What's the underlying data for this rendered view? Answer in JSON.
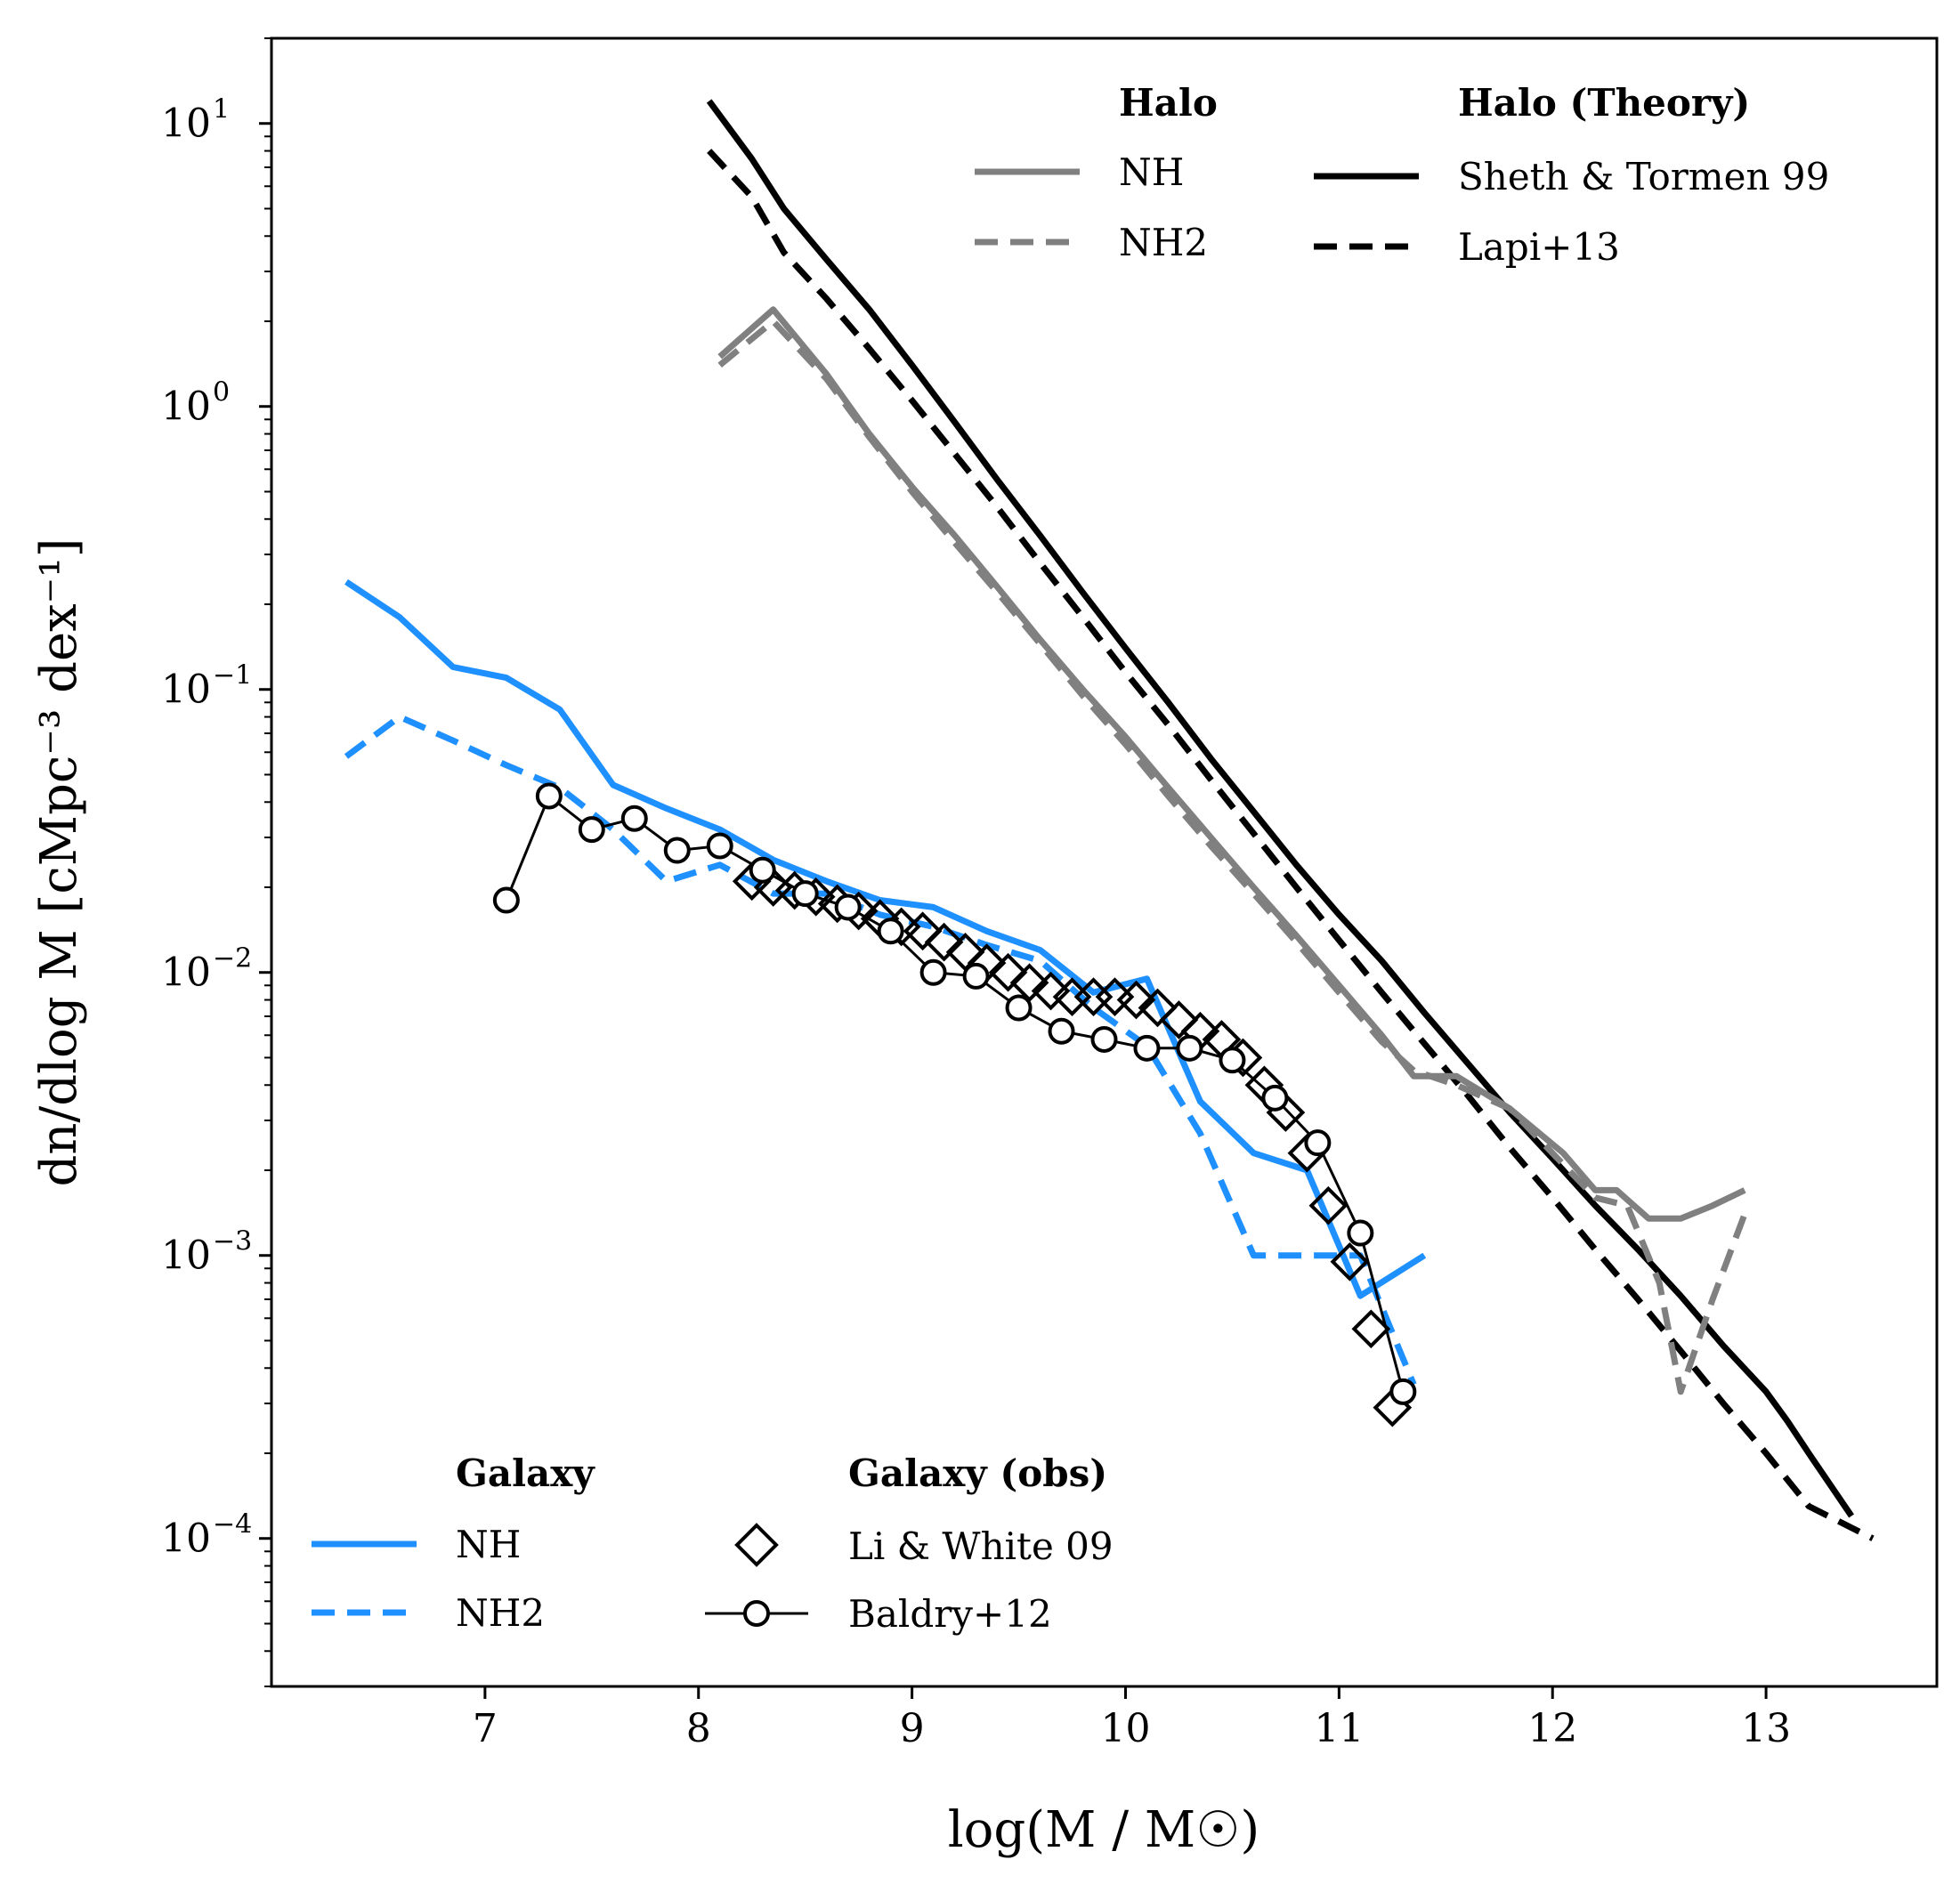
{
  "chart_data": {
    "type": "line",
    "title": "",
    "xlabel": "log(M / M☉)",
    "ylabel": "dn/dlog M [cMpc⁻³ dex⁻¹]",
    "xlim": [
      6.0,
      13.8
    ],
    "ylim": [
      3e-05,
      20
    ],
    "yscale": "log",
    "grid": false,
    "xticks": [
      7,
      8,
      9,
      10,
      11,
      12,
      13
    ],
    "xtick_labels": [
      "7",
      "8",
      "9",
      "10",
      "11",
      "12",
      "13"
    ],
    "yticks": [
      0.0001,
      0.001,
      0.01,
      0.1,
      1,
      10
    ],
    "ytick_base": [
      "10",
      "10",
      "10",
      "10",
      "10",
      "10"
    ],
    "ytick_exp": [
      "−4",
      "−3",
      "−2",
      "−1",
      "0",
      "1"
    ],
    "legends": [
      {
        "title": "Halo",
        "location": "top-center",
        "entries": [
          "NH",
          "NH2"
        ]
      },
      {
        "title": "Halo (Theory)",
        "location": "top-right",
        "entries": [
          "Sheth & Tormen 99",
          "Lapi+13"
        ]
      },
      {
        "title": "Galaxy",
        "location": "bottom-left",
        "entries": [
          "NH",
          "NH2"
        ]
      },
      {
        "title": "Galaxy (obs)",
        "location": "bottom-center",
        "entries": [
          "Li & White 09",
          "Baldry+12"
        ]
      }
    ],
    "series": [
      {
        "name": "Sheth & Tormen 99",
        "group": "Halo (Theory)",
        "color": "#000000",
        "dash": "solid",
        "x": [
          8.05,
          8.25,
          8.4,
          8.6,
          8.8,
          9.0,
          9.2,
          9.4,
          9.6,
          9.8,
          10.0,
          10.2,
          10.4,
          10.6,
          10.8,
          11.0,
          11.2,
          11.4,
          11.6,
          11.8,
          12.0,
          12.2,
          12.4,
          12.6,
          12.8,
          13.0,
          13.1,
          13.2,
          13.4
        ],
        "y": [
          12,
          7.5,
          5.0,
          3.3,
          2.2,
          1.4,
          0.88,
          0.55,
          0.35,
          0.22,
          0.14,
          0.09,
          0.057,
          0.037,
          0.024,
          0.016,
          0.011,
          0.0072,
          0.0048,
          0.0032,
          0.0022,
          0.0015,
          0.00105,
          0.00072,
          0.00048,
          0.00033,
          0.00026,
          0.0002,
          0.00012
        ]
      },
      {
        "name": "Lapi+13",
        "group": "Halo (Theory)",
        "color": "#000000",
        "dash": "dashed",
        "x": [
          8.05,
          8.25,
          8.4,
          8.6,
          8.8,
          9.0,
          9.2,
          9.4,
          9.6,
          9.8,
          10.0,
          10.2,
          10.4,
          10.6,
          10.8,
          11.0,
          11.2,
          11.4,
          11.6,
          11.8,
          12.0,
          12.2,
          12.4,
          12.6,
          12.8,
          13.0,
          13.2,
          13.5
        ],
        "y": [
          8.0,
          5.5,
          3.5,
          2.4,
          1.6,
          1.05,
          0.68,
          0.44,
          0.28,
          0.18,
          0.115,
          0.075,
          0.048,
          0.031,
          0.02,
          0.013,
          0.0085,
          0.0056,
          0.0037,
          0.0024,
          0.0016,
          0.00105,
          0.0007,
          0.00046,
          0.0003,
          0.0002,
          0.00013,
          0.0001
        ]
      },
      {
        "name": "Halo NH",
        "group": "Halo",
        "color": "#808080",
        "dash": "solid",
        "x": [
          8.1,
          8.35,
          8.6,
          8.8,
          9.0,
          9.2,
          9.4,
          9.6,
          9.8,
          10.0,
          10.2,
          10.4,
          10.6,
          10.8,
          11.0,
          11.2,
          11.35,
          11.55,
          11.8,
          12.05,
          12.2,
          12.3,
          12.45,
          12.6,
          12.75,
          12.9
        ],
        "y": [
          1.5,
          2.2,
          1.3,
          0.8,
          0.52,
          0.35,
          0.23,
          0.15,
          0.1,
          0.068,
          0.045,
          0.03,
          0.02,
          0.0135,
          0.009,
          0.006,
          0.0043,
          0.0043,
          0.0033,
          0.0023,
          0.0017,
          0.0017,
          0.00135,
          0.00135,
          0.0015,
          0.0017
        ]
      },
      {
        "name": "Halo NH2",
        "group": "Halo",
        "color": "#808080",
        "dash": "dashed",
        "x": [
          8.1,
          8.35,
          8.6,
          8.8,
          9.0,
          9.2,
          9.4,
          9.6,
          9.8,
          10.0,
          10.2,
          10.4,
          10.6,
          10.8,
          11.0,
          11.2,
          11.35,
          11.55,
          11.8,
          12.05,
          12.2,
          12.35,
          12.5,
          12.6,
          12.75,
          12.9
        ],
        "y": [
          1.4,
          2.0,
          1.25,
          0.78,
          0.5,
          0.33,
          0.22,
          0.145,
          0.095,
          0.064,
          0.042,
          0.028,
          0.019,
          0.0128,
          0.0085,
          0.0057,
          0.0045,
          0.004,
          0.0033,
          0.0021,
          0.0016,
          0.0015,
          0.0008,
          0.00033,
          0.0007,
          0.0014
        ]
      },
      {
        "name": "Galaxy NH",
        "group": "Galaxy",
        "color": "#1e90ff",
        "dash": "solid",
        "x": [
          6.35,
          6.6,
          6.85,
          7.1,
          7.35,
          7.6,
          7.85,
          8.1,
          8.35,
          8.6,
          8.85,
          9.1,
          9.35,
          9.6,
          9.85,
          10.1,
          10.35,
          10.6,
          10.85,
          11.1,
          11.4
        ],
        "y": [
          0.24,
          0.18,
          0.12,
          0.11,
          0.085,
          0.046,
          0.038,
          0.032,
          0.025,
          0.021,
          0.018,
          0.017,
          0.014,
          0.012,
          0.0085,
          0.0095,
          0.0035,
          0.0023,
          0.002,
          0.00072,
          0.001
        ]
      },
      {
        "name": "Galaxy NH2",
        "group": "Galaxy",
        "color": "#1e90ff",
        "dash": "dashed",
        "x": [
          6.35,
          6.6,
          6.85,
          7.1,
          7.35,
          7.6,
          7.85,
          8.1,
          8.35,
          8.6,
          8.85,
          9.1,
          9.35,
          9.6,
          9.85,
          10.1,
          10.35,
          10.6,
          10.85,
          11.1,
          11.35
        ],
        "y": [
          0.058,
          0.08,
          0.066,
          0.054,
          0.045,
          0.032,
          0.021,
          0.024,
          0.019,
          0.019,
          0.016,
          0.0145,
          0.0125,
          0.011,
          0.0075,
          0.0055,
          0.0027,
          0.001,
          0.001,
          0.001,
          0.00035
        ]
      }
    ],
    "markers": [
      {
        "name": "Li & White 09",
        "group": "Galaxy (obs)",
        "marker": "diamond",
        "color": "#000000",
        "line": false,
        "x": [
          8.25,
          8.35,
          8.45,
          8.55,
          8.65,
          8.75,
          8.85,
          8.95,
          9.05,
          9.15,
          9.25,
          9.35,
          9.45,
          9.55,
          9.65,
          9.75,
          9.85,
          9.95,
          10.05,
          10.15,
          10.25,
          10.35,
          10.45,
          10.55,
          10.65,
          10.75,
          10.85,
          10.95,
          11.05,
          11.15,
          11.25
        ],
        "y": [
          0.021,
          0.02,
          0.0195,
          0.0185,
          0.0175,
          0.0165,
          0.0155,
          0.0145,
          0.014,
          0.0128,
          0.0118,
          0.0108,
          0.01,
          0.0092,
          0.0086,
          0.0082,
          0.0082,
          0.0082,
          0.008,
          0.0075,
          0.0068,
          0.0062,
          0.0058,
          0.005,
          0.004,
          0.0032,
          0.0023,
          0.0015,
          0.00095,
          0.00055,
          0.00029
        ]
      },
      {
        "name": "Baldry+12",
        "group": "Galaxy (obs)",
        "marker": "circle",
        "color": "#000000",
        "line": true,
        "x": [
          7.1,
          7.3,
          7.5,
          7.7,
          7.9,
          8.1,
          8.3,
          8.5,
          8.7,
          8.9,
          9.1,
          9.3,
          9.5,
          9.7,
          9.9,
          10.1,
          10.3,
          10.5,
          10.7,
          10.9,
          11.1,
          11.3
        ],
        "y": [
          0.018,
          0.042,
          0.032,
          0.035,
          0.027,
          0.028,
          0.023,
          0.019,
          0.017,
          0.014,
          0.01,
          0.0097,
          0.0075,
          0.0062,
          0.0058,
          0.0054,
          0.0054,
          0.0049,
          0.0036,
          0.0025,
          0.0012,
          0.00033
        ]
      }
    ]
  }
}
